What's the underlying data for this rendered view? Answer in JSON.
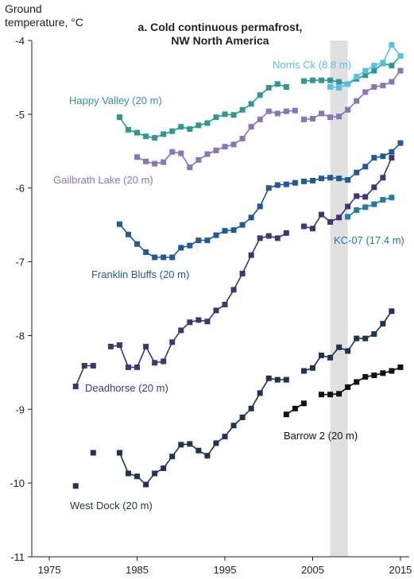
{
  "chart_data": {
    "type": "line",
    "title": "a. Cold continuous permafrost,",
    "subtitle": "NW North America",
    "ylabel_line1": "Ground",
    "ylabel_line2": "temperature, °C",
    "xlabel": "",
    "xlim": [
      1973,
      2016
    ],
    "ylim": [
      -11,
      -4
    ],
    "x_ticks": [
      1975,
      1985,
      1995,
      2005,
      2015
    ],
    "y_ticks": [
      -4,
      -5,
      -6,
      -7,
      -8,
      -9,
      -10,
      -11
    ],
    "shaded_band": {
      "x_start": 2007,
      "x_end": 2009,
      "color": "#e0e0e0"
    },
    "grid": false,
    "series": [
      {
        "name": "Happy Valley (20 m)",
        "color": "#2b9a8f",
        "segments": [
          [
            [
              1983,
              -5.04
            ],
            [
              1984,
              -5.21
            ],
            [
              1985,
              -5.25
            ],
            [
              1986,
              -5.3
            ],
            [
              1987,
              -5.32
            ],
            [
              1988,
              -5.27
            ],
            [
              1989,
              -5.23
            ],
            [
              1990,
              -5.17
            ],
            [
              1991,
              -5.2
            ],
            [
              1992,
              -5.15
            ],
            [
              1993,
              -5.12
            ],
            [
              1994,
              -5.04
            ],
            [
              1995,
              -5.0
            ],
            [
              1996,
              -5.01
            ],
            [
              1997,
              -4.94
            ],
            [
              1998,
              -4.86
            ],
            [
              1999,
              -4.74
            ],
            [
              2000,
              -4.64
            ],
            [
              2001,
              -4.59
            ],
            [
              2002,
              -4.63
            ]
          ],
          [
            [
              2004,
              -4.55
            ],
            [
              2005,
              -4.54
            ],
            [
              2006,
              -4.54
            ],
            [
              2007,
              -4.54
            ],
            [
              2008,
              -4.56
            ],
            [
              2009,
              -4.59
            ],
            [
              2010,
              -4.52
            ],
            [
              2011,
              -4.47
            ],
            [
              2012,
              -4.41
            ],
            [
              2013,
              -4.31
            ],
            [
              2014,
              -4.34
            ],
            [
              2015,
              -4.21
            ]
          ]
        ]
      },
      {
        "name": "Norris Ck (8.8 m)",
        "color": "#55c1e6",
        "segments": [
          [
            [
              2007,
              -4.63
            ],
            [
              2008,
              -4.64
            ],
            [
              2009,
              -4.59
            ],
            [
              2010,
              -4.49
            ],
            [
              2011,
              -4.41
            ],
            [
              2012,
              -4.34
            ],
            [
              2013,
              -4.3
            ],
            [
              2014,
              -4.06
            ],
            [
              2015,
              -4.21
            ]
          ]
        ]
      },
      {
        "name": "Gailbrath Lake (20 m)",
        "color": "#8a74bd",
        "segments": [
          [
            [
              1985,
              -5.58
            ],
            [
              1986,
              -5.64
            ],
            [
              1987,
              -5.67
            ],
            [
              1988,
              -5.65
            ],
            [
              1989,
              -5.51
            ],
            [
              1990,
              -5.53
            ],
            [
              1991,
              -5.72
            ],
            [
              1992,
              -5.62
            ],
            [
              1993,
              -5.54
            ],
            [
              1994,
              -5.49
            ],
            [
              1995,
              -5.44
            ],
            [
              1996,
              -5.41
            ],
            [
              1997,
              -5.33
            ],
            [
              1998,
              -5.17
            ],
            [
              1999,
              -5.07
            ],
            [
              2000,
              -4.96
            ],
            [
              2001,
              -4.99
            ],
            [
              2002,
              -4.96
            ],
            [
              2003,
              -4.95
            ]
          ],
          [
            [
              2004,
              -5.07
            ],
            [
              2005,
              -5.06
            ],
            [
              2006,
              -4.99
            ],
            [
              2007,
              -5.04
            ],
            [
              2008,
              -5.03
            ],
            [
              2009,
              -4.94
            ],
            [
              2010,
              -4.82
            ],
            [
              2011,
              -4.7
            ],
            [
              2012,
              -4.63
            ],
            [
              2013,
              -4.61
            ],
            [
              2014,
              -4.56
            ],
            [
              2015,
              -4.41
            ]
          ]
        ]
      },
      {
        "name": "Franklin Bluffs (20 m)",
        "color": "#1f5a9e",
        "segments": [
          [
            [
              1983,
              -6.49
            ],
            [
              1984,
              -6.63
            ],
            [
              1985,
              -6.76
            ],
            [
              1986,
              -6.87
            ],
            [
              1987,
              -6.94
            ],
            [
              1988,
              -6.94
            ],
            [
              1989,
              -6.94
            ],
            [
              1990,
              -6.81
            ],
            [
              1991,
              -6.78
            ],
            [
              1992,
              -6.71
            ],
            [
              1993,
              -6.71
            ],
            [
              1994,
              -6.64
            ],
            [
              1995,
              -6.58
            ],
            [
              1996,
              -6.57
            ],
            [
              1997,
              -6.5
            ],
            [
              1998,
              -6.4
            ],
            [
              1999,
              -6.25
            ],
            [
              2000,
              -6.0
            ],
            [
              2001,
              -5.96
            ],
            [
              2002,
              -5.95
            ],
            [
              2003,
              -5.93
            ]
          ],
          [
            [
              2004,
              -5.91
            ],
            [
              2005,
              -5.9
            ],
            [
              2006,
              -5.87
            ],
            [
              2007,
              -5.86
            ],
            [
              2008,
              -5.87
            ],
            [
              2009,
              -5.89
            ],
            [
              2010,
              -5.79
            ],
            [
              2011,
              -5.71
            ],
            [
              2012,
              -5.59
            ],
            [
              2013,
              -5.57
            ],
            [
              2014,
              -5.51
            ],
            [
              2015,
              -5.39
            ]
          ]
        ]
      },
      {
        "name": "KC-07 (17.4 m)",
        "color": "#1f7ba7",
        "segments": [
          [
            [
              2009,
              -6.39
            ],
            [
              2010,
              -6.3
            ],
            [
              2011,
              -6.26
            ],
            [
              2012,
              -6.22
            ],
            [
              2013,
              -6.16
            ],
            [
              2014,
              -6.13
            ]
          ]
        ]
      },
      {
        "name": "Deadhorse (20 m)",
        "color": "#3f3677",
        "segments": [
          [
            [
              1978,
              -8.69
            ],
            [
              1979,
              -8.41
            ],
            [
              1980,
              -8.41
            ]
          ],
          [
            [
              1982,
              -8.15
            ],
            [
              1983,
              -8.13
            ],
            [
              1984,
              -8.43
            ],
            [
              1985,
              -8.43
            ],
            [
              1986,
              -8.15
            ],
            [
              1987,
              -8.37
            ],
            [
              1988,
              -8.35
            ],
            [
              1989,
              -8.09
            ],
            [
              1990,
              -7.93
            ],
            [
              1991,
              -7.82
            ],
            [
              1992,
              -7.79
            ],
            [
              1993,
              -7.81
            ],
            [
              1994,
              -7.66
            ],
            [
              1995,
              -7.58
            ],
            [
              1996,
              -7.38
            ],
            [
              1997,
              -7.16
            ],
            [
              1998,
              -6.91
            ],
            [
              1999,
              -6.68
            ],
            [
              2000,
              -6.65
            ],
            [
              2001,
              -6.68
            ],
            [
              2002,
              -6.61
            ]
          ],
          [
            [
              2004,
              -6.52
            ],
            [
              2005,
              -6.55
            ],
            [
              2006,
              -6.36
            ],
            [
              2007,
              -6.46
            ],
            [
              2008,
              -6.4
            ],
            [
              2009,
              -6.25
            ],
            [
              2010,
              -6.11
            ],
            [
              2011,
              -6.12
            ],
            [
              2012,
              -5.99
            ],
            [
              2013,
              -5.86
            ],
            [
              2014,
              -5.59
            ]
          ]
        ]
      },
      {
        "name": "West Dock (20 m)",
        "color": "#1c3552",
        "segments": [
          [
            [
              1978,
              -10.04
            ]
          ],
          [
            [
              1980,
              -9.59
            ]
          ],
          [
            [
              1983,
              -9.59
            ],
            [
              1984,
              -9.87
            ],
            [
              1985,
              -9.91
            ],
            [
              1986,
              -10.02
            ],
            [
              1987,
              -9.87
            ],
            [
              1988,
              -9.8
            ],
            [
              1989,
              -9.64
            ],
            [
              1990,
              -9.48
            ],
            [
              1991,
              -9.47
            ],
            [
              1992,
              -9.56
            ],
            [
              1993,
              -9.63
            ],
            [
              1994,
              -9.46
            ],
            [
              1995,
              -9.37
            ],
            [
              1996,
              -9.22
            ],
            [
              1997,
              -9.11
            ],
            [
              1998,
              -8.99
            ],
            [
              1999,
              -8.78
            ],
            [
              2000,
              -8.58
            ],
            [
              2001,
              -8.6
            ],
            [
              2002,
              -8.6
            ]
          ],
          [
            [
              2004,
              -8.48
            ],
            [
              2005,
              -8.44
            ],
            [
              2006,
              -8.27
            ],
            [
              2007,
              -8.3
            ],
            [
              2008,
              -8.16
            ],
            [
              2009,
              -8.21
            ],
            [
              2010,
              -8.04
            ],
            [
              2011,
              -8.04
            ],
            [
              2012,
              -7.98
            ],
            [
              2013,
              -7.84
            ],
            [
              2014,
              -7.67
            ]
          ]
        ]
      },
      {
        "name": "Barrow 2 (20 m)",
        "color": "#111111",
        "segments": [
          [
            [
              2002,
              -9.07
            ],
            [
              2003,
              -8.99
            ],
            [
              2004,
              -8.92
            ]
          ],
          [
            [
              2006,
              -8.8
            ],
            [
              2007,
              -8.8
            ],
            [
              2008,
              -8.79
            ],
            [
              2009,
              -8.7
            ],
            [
              2010,
              -8.63
            ],
            [
              2011,
              -8.56
            ],
            [
              2012,
              -8.54
            ],
            [
              2013,
              -8.51
            ],
            [
              2014,
              -8.48
            ],
            [
              2015,
              -8.43
            ]
          ]
        ]
      }
    ]
  }
}
